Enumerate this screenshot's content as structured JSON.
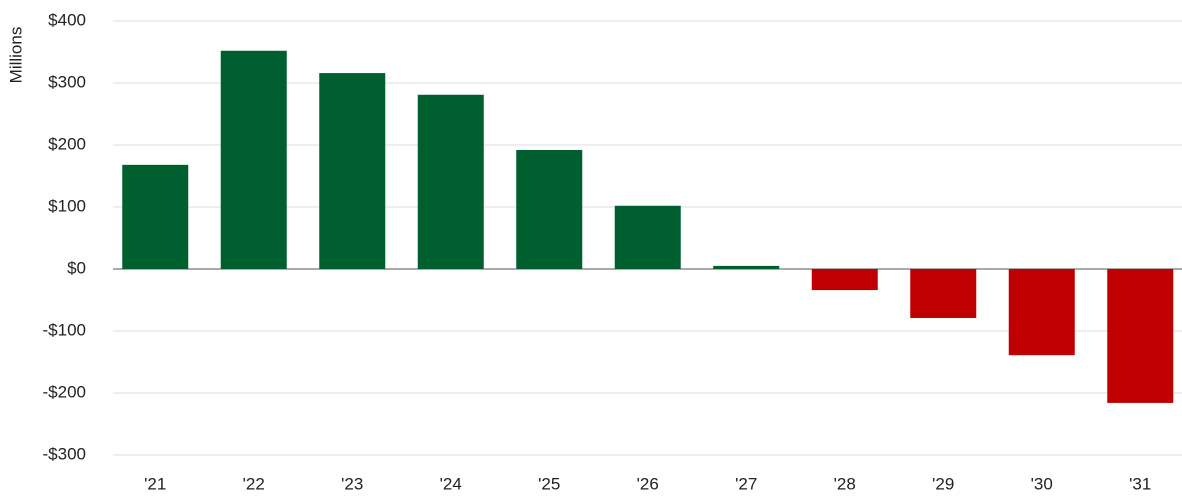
{
  "chart_data": {
    "type": "bar",
    "y_label": "Millions",
    "categories": [
      "'21",
      "'22",
      "'23",
      "'24",
      "'25",
      "'26",
      "'27",
      "'28",
      "'29",
      "'30",
      "'31"
    ],
    "values": [
      168,
      352,
      316,
      281,
      192,
      102,
      5,
      -34,
      -79,
      -139,
      -216
    ],
    "colors": [
      "#005f2f",
      "#005f2f",
      "#005f2f",
      "#005f2f",
      "#005f2f",
      "#005f2f",
      "#005f2f",
      "#c00000",
      "#c00000",
      "#c00000",
      "#c00000"
    ],
    "ylim": [
      -300,
      400
    ],
    "yticks": [
      {
        "value": -300,
        "label": "-$300"
      },
      {
        "value": -200,
        "label": "-$200"
      },
      {
        "value": -100,
        "label": "-$100"
      },
      {
        "value": 0,
        "label": "$0"
      },
      {
        "value": 100,
        "label": "$100"
      },
      {
        "value": 200,
        "label": "$200"
      },
      {
        "value": 300,
        "label": "$300"
      },
      {
        "value": 400,
        "label": "$400"
      }
    ],
    "grid": true
  }
}
